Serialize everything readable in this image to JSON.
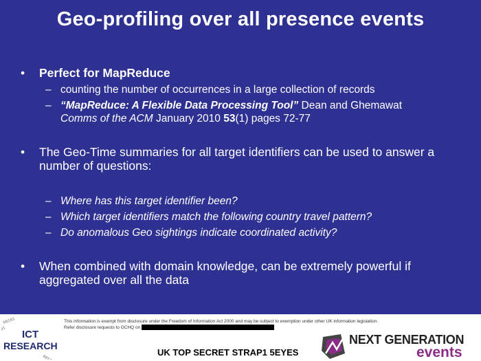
{
  "slide": {
    "title": "Geo-profiling over all presence events",
    "bullets": [
      {
        "text": "Perfect for MapReduce",
        "subs": [
          {
            "text": "counting the number of occurrences in a large collection of records"
          },
          {
            "quote": "“MapReduce: A Flexible Data Processing Tool”",
            "authors": " Dean and Ghemawat",
            "journal": "Comms of the ACM",
            "date": " January 2010 ",
            "volume": "53",
            "issue_pages": "(1) pages 72-77"
          }
        ]
      },
      {
        "text": "The Geo-Time summaries for all target identifiers can be used to answer a number of questions:",
        "subs": [
          {
            "text": "Where has this target identifier been?"
          },
          {
            "text": "Which target identifiers match the following country travel pattern?"
          },
          {
            "text": "Do anomalous Geo sightings indicate coordinated activity?"
          }
        ]
      },
      {
        "text": "When combined with domain knowledge, can be extremely powerful if aggregated over all the data"
      }
    ],
    "bullet_glyph": "•",
    "dash_glyph": "–"
  },
  "footer": {
    "ict_logo_line1": "ICT",
    "ict_logo_line2": "RESEARCH",
    "disclaimer_line1": "This information is exempt from disclosure under the Freedom of Information Act 2000 and may be subject to exemption under other UK information legislation.",
    "disclaimer_line2": "Refer disclosure requests to GCHQ on",
    "classification": "UK TOP SECRET STRAP1 5EYES",
    "ng_line1": "NEXT GENERATION",
    "ng_line2": "events",
    "colors": {
      "slide_bg": "#2e3092",
      "events_purple": "#8b2d86"
    }
  }
}
